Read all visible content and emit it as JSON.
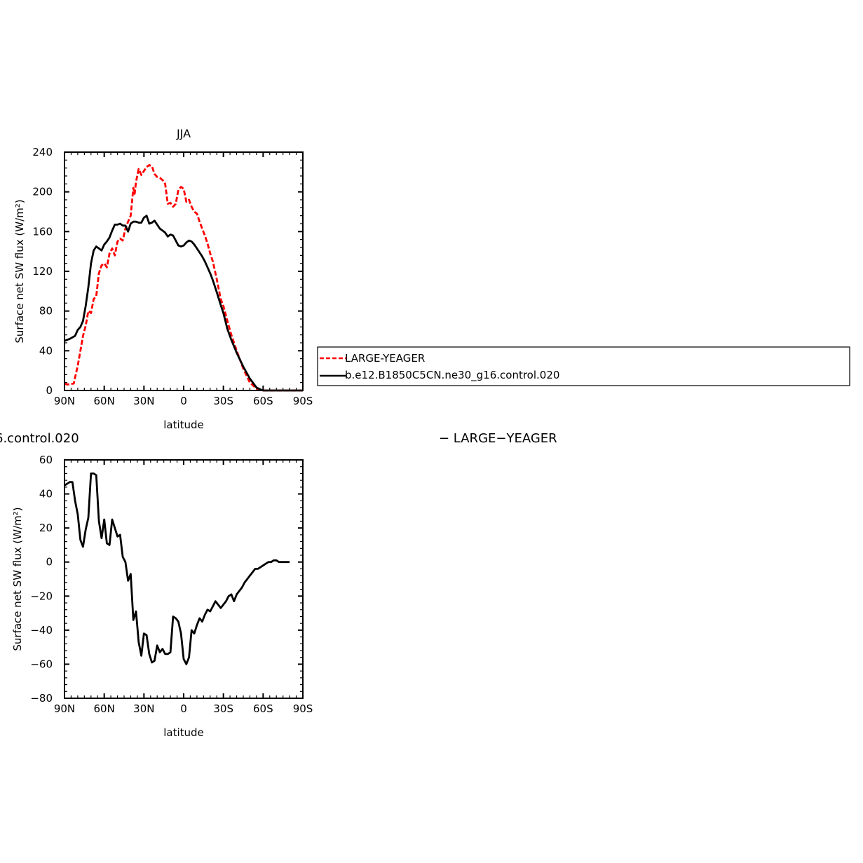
{
  "chart_data": [
    {
      "type": "line",
      "title": "JJA",
      "xlabel": "latitude",
      "ylabel": "Surface net SW flux (W/m²)",
      "xlim": [
        90,
        -90
      ],
      "ylim": [
        0,
        240
      ],
      "xticks": [
        90,
        60,
        30,
        0,
        -30,
        -60,
        -90
      ],
      "xtick_labels": [
        "90N",
        "60N",
        "30N",
        "0",
        "30S",
        "60S",
        "90S"
      ],
      "yticks": [
        0,
        40,
        80,
        120,
        160,
        200,
        240
      ],
      "ytick_labels": [
        "0",
        "40",
        "80",
        "120",
        "160",
        "200",
        "240"
      ],
      "legend": [
        "LARGE-YEAGER",
        "b.e12.B1850C5CN.ne30_g16.control.020"
      ],
      "series": [
        {
          "name": "LARGE-YEAGER",
          "color": "#ff0000",
          "dash": "dashed",
          "x": [
            90,
            88,
            83,
            80,
            78,
            76,
            74,
            72,
            70,
            68,
            66,
            64,
            62,
            60,
            58,
            56,
            54,
            52,
            50,
            48,
            46,
            44,
            42,
            40,
            38,
            37,
            36,
            34,
            32,
            30,
            28,
            26,
            24,
            22,
            20,
            18,
            16,
            14,
            12,
            10,
            8,
            6,
            4,
            2,
            0,
            -2,
            -4,
            -6,
            -8,
            -10,
            -12,
            -14,
            -16,
            -18,
            -20,
            -22,
            -25,
            -28,
            -30,
            -33,
            -36,
            -40,
            -45,
            -50,
            -55,
            -58,
            -60,
            -62,
            -64,
            -66,
            -70,
            -75,
            -80,
            -85,
            -90
          ],
          "y": [
            7,
            6,
            7,
            25,
            40,
            55,
            65,
            80,
            78,
            92,
            95,
            118,
            126,
            128,
            124,
            138,
            143,
            136,
            150,
            153,
            151,
            163,
            170,
            176,
            204,
            198,
            210,
            223,
            217,
            221,
            225,
            227,
            226,
            218,
            215,
            214,
            212,
            208,
            188,
            189,
            185,
            188,
            202,
            205,
            203,
            190,
            192,
            185,
            180,
            178,
            170,
            163,
            156,
            148,
            138,
            130,
            112,
            92,
            85,
            70,
            56,
            40,
            22,
            8,
            2,
            1,
            0,
            0,
            0,
            0,
            0,
            0,
            0,
            0,
            0
          ]
        },
        {
          "name": "b.e12.B1850C5CN.ne30_g16.control.020",
          "color": "#000000",
          "dash": "solid",
          "x": [
            90,
            86,
            82,
            80,
            78,
            76,
            74,
            72,
            70,
            68,
            66,
            64,
            62,
            60,
            58,
            56,
            54,
            52,
            50,
            48,
            46,
            44,
            42,
            40,
            38,
            36,
            34,
            32,
            30,
            28,
            26,
            24,
            22,
            20,
            18,
            16,
            14,
            12,
            10,
            8,
            6,
            4,
            2,
            0,
            -2,
            -4,
            -6,
            -8,
            -10,
            -12,
            -14,
            -16,
            -18,
            -20,
            -22,
            -25,
            -28,
            -30,
            -33,
            -36,
            -40,
            -45,
            -50,
            -55,
            -58,
            -60,
            -62,
            -64,
            -66,
            -70,
            -75,
            -80,
            -85,
            -90
          ],
          "y": [
            50,
            52,
            55,
            61,
            64,
            70,
            85,
            104,
            128,
            141,
            145,
            143,
            141,
            147,
            150,
            154,
            161,
            167,
            167,
            168,
            166,
            166,
            160,
            168,
            170,
            170,
            169,
            169,
            174,
            176,
            168,
            169,
            171,
            167,
            163,
            161,
            159,
            155,
            157,
            156,
            151,
            146,
            145,
            146,
            149,
            151,
            150,
            147,
            143,
            139,
            135,
            130,
            124,
            118,
            111,
            99,
            86,
            78,
            62,
            51,
            38,
            24,
            12,
            3,
            1,
            0,
            0,
            0,
            0,
            0,
            0,
            0,
            0,
            0
          ]
        }
      ]
    },
    {
      "type": "line",
      "title": "",
      "xlabel": "latitude",
      "ylabel": "Surface net SW flux (W/m²)",
      "xlim": [
        90,
        -90
      ],
      "ylim": [
        -80,
        60
      ],
      "xticks": [
        90,
        60,
        30,
        0,
        -30,
        -60,
        -90
      ],
      "xtick_labels": [
        "90N",
        "60N",
        "30N",
        "0",
        "30S",
        "60S",
        "90S"
      ],
      "yticks": [
        -80,
        -60,
        -40,
        -20,
        0,
        20,
        40,
        60
      ],
      "ytick_labels": [
        "−80",
        "−60",
        "−40",
        "−20",
        "0",
        "20",
        "40",
        "60"
      ],
      "series": [
        {
          "name": "",
          "color": "#000000",
          "dash": "solid",
          "x": [
            90,
            88,
            86,
            84,
            82,
            80,
            78,
            76,
            74,
            72,
            70,
            68,
            66,
            64,
            62,
            60,
            58,
            56,
            54,
            52,
            50,
            48,
            46,
            44,
            42,
            40,
            38,
            36,
            34,
            32,
            30,
            28,
            26,
            24,
            22,
            20,
            18,
            16,
            14,
            12,
            10,
            8,
            6,
            4,
            2,
            0,
            -2,
            -4,
            -6,
            -8,
            -10,
            -12,
            -14,
            -16,
            -18,
            -20,
            -22,
            -24,
            -26,
            -28,
            -30,
            -32,
            -34,
            -36,
            -38,
            -40,
            -42,
            -44,
            -46,
            -48,
            -50,
            -52,
            -54,
            -56,
            -58,
            -60,
            -62,
            -64,
            -66,
            -68,
            -70,
            -72,
            -74,
            -76,
            -78,
            -80
          ],
          "y": [
            45,
            46,
            47,
            47,
            36,
            28,
            13,
            9,
            19,
            26,
            52,
            52,
            51,
            24,
            14,
            25,
            11,
            10,
            25,
            20,
            15,
            16,
            3,
            0,
            -11,
            -7,
            -34,
            -29,
            -47,
            -55,
            -42,
            -43,
            -54,
            -59,
            -58,
            -49,
            -53,
            -51,
            -54,
            -54,
            -53,
            -32,
            -33,
            -35,
            -42,
            -57,
            -60,
            -56,
            -40,
            -42,
            -37,
            -33,
            -35,
            -31,
            -28,
            -29,
            -26,
            -23,
            -25,
            -27,
            -25,
            -23,
            -20,
            -19,
            -23,
            -19,
            -17,
            -15,
            -12,
            -10,
            -8,
            -6,
            -4,
            -4,
            -3,
            -2,
            -1,
            0,
            0,
            1,
            1,
            0,
            0,
            0,
            0,
            0
          ]
        }
      ]
    }
  ],
  "overlay_text": {
    "left_label": "6.control.020",
    "right_label": "− LARGE−YEAGER"
  }
}
